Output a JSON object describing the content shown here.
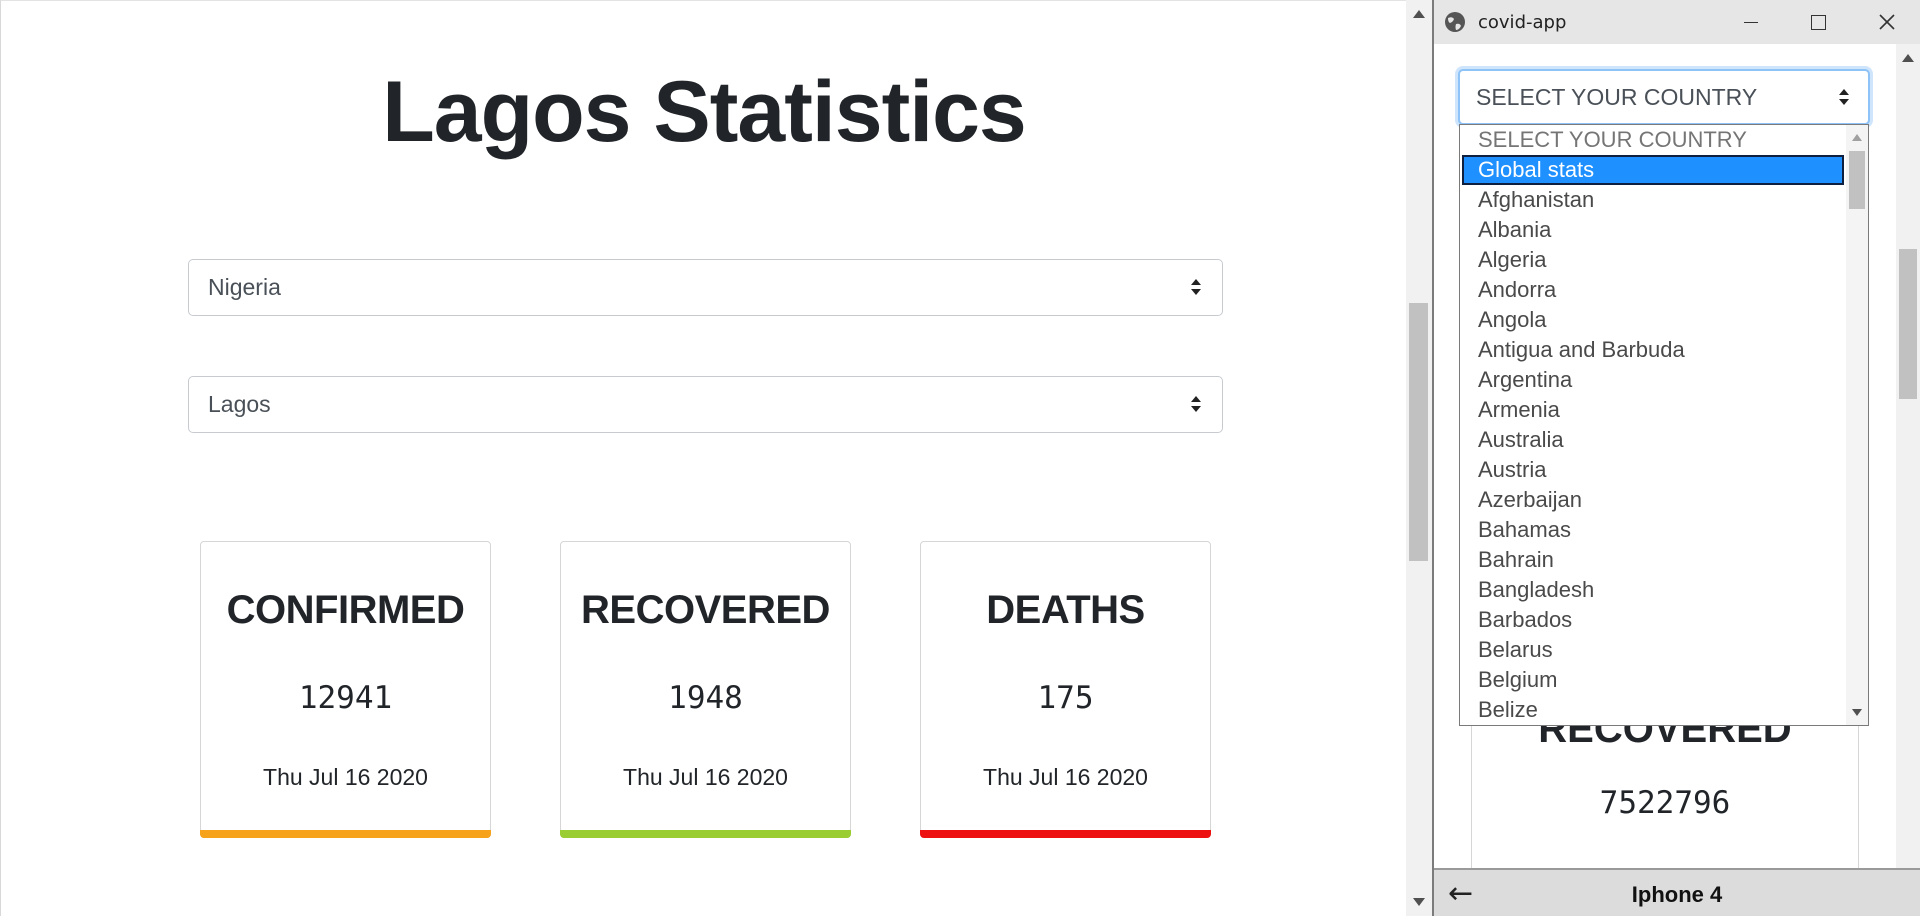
{
  "main": {
    "title": "Lagos Statistics",
    "country_select": {
      "value": "Nigeria"
    },
    "state_select": {
      "value": "Lagos"
    },
    "cards": [
      {
        "title": "CONFIRMED",
        "value": "12941",
        "date": "Thu Jul 16 2020",
        "color": "#f6a21b"
      },
      {
        "title": "RECOVERED",
        "value": "1948",
        "date": "Thu Jul 16 2020",
        "color": "#9acd32"
      },
      {
        "title": "DEATHS",
        "value": "175",
        "date": "Thu Jul 16 2020",
        "color": "#ee1111"
      }
    ]
  },
  "device": {
    "window_title": "covid-app",
    "country_select": {
      "value": "SELECT YOUR COUNTRY"
    },
    "dropdown_options": [
      "SELECT YOUR COUNTRY",
      "Global stats",
      "Afghanistan",
      "Albania",
      "Algeria",
      "Andorra",
      "Angola",
      "Antigua and Barbuda",
      "Argentina",
      "Armenia",
      "Australia",
      "Austria",
      "Azerbaijan",
      "Bahamas",
      "Bahrain",
      "Bangladesh",
      "Barbados",
      "Belarus",
      "Belgium",
      "Belize"
    ],
    "selected_option": "Global stats",
    "card": {
      "title": "RECOVERED",
      "value": "7522796"
    },
    "bottom_bar": {
      "back_icon": "←",
      "device_name": "Iphone 4"
    }
  },
  "colors": {
    "selection_blue": "#1e90ff",
    "focus_ring": "#8ec3f7"
  }
}
